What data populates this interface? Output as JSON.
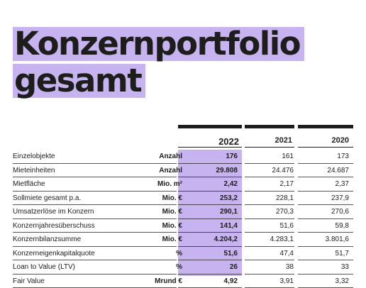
{
  "title": {
    "line1": "Konzernportfolio",
    "line2": "gesamt"
  },
  "table": {
    "years": [
      "2022",
      "2021",
      "2020"
    ],
    "rows": [
      {
        "label": "Einzelobjekte",
        "unit": "Anzahl",
        "v2022": "176",
        "v2021": "161",
        "v2020": "173"
      },
      {
        "label": "Mieteinheiten",
        "unit": "Anzahl",
        "v2022": "29.808",
        "v2021": "24.476",
        "v2020": "24.687"
      },
      {
        "label": "Mietfläche",
        "unit": "Mio. m²",
        "v2022": "2,42",
        "v2021": "2,17",
        "v2020": "2,37"
      },
      {
        "label": "Sollmiete gesamt p.a.",
        "unit": "Mio. €",
        "v2022": "253,2",
        "v2021": "228,1",
        "v2020": "237,9"
      },
      {
        "label": "Umsatzerlöse im Konzern",
        "unit": "Mio. €",
        "v2022": "290,1",
        "v2021": "270,3",
        "v2020": "270,6"
      },
      {
        "label": "Konzernjahresüberschuss",
        "unit": "Mio. €",
        "v2022": "141,4",
        "v2021": "51,6",
        "v2020": "59,8"
      },
      {
        "label": "Konzernbilanzsumme",
        "unit": "Mio. €",
        "v2022": "4.204,2",
        "v2021": "4.283,1",
        "v2020": "3.801,6"
      },
      {
        "label": "Konzerneigenkapitalquote",
        "unit": "%",
        "v2022": "51,6",
        "v2021": "47,4",
        "v2020": "51,7"
      },
      {
        "label": "Loan to Value (LTV)",
        "unit": "%",
        "v2022": "26",
        "v2021": "38",
        "v2020": "33"
      },
      {
        "label": "Fair Value",
        "unit": "Mrund €",
        "v2022": "4,92",
        "v2021": "3,91",
        "v2020": "3,32"
      }
    ]
  },
  "colors": {
    "accent": "#c6b3f0",
    "text": "#1d1d1b"
  }
}
